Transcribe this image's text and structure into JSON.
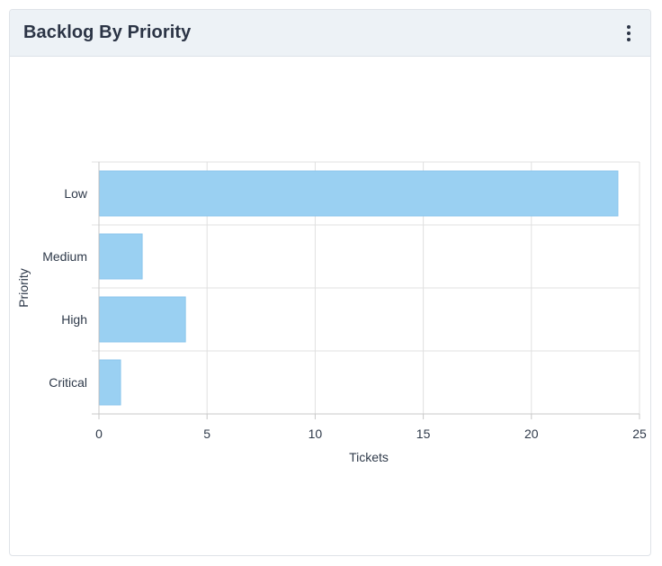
{
  "card": {
    "title": "Backlog By Priority",
    "menu_icon": "kebab-vertical-icon"
  },
  "colors": {
    "bar_fill": "#9ad0f2",
    "bar_stroke": "#8cc6ec",
    "grid": "#e0e0e0",
    "axis": "#c8c8c8",
    "header_bg": "#edf2f6"
  },
  "chart_data": {
    "type": "bar",
    "orientation": "horizontal",
    "title": "",
    "categories": [
      "Low",
      "Medium",
      "High",
      "Critical"
    ],
    "values": [
      24,
      2,
      4,
      1
    ],
    "xlabel": "Tickets",
    "ylabel": "Priority",
    "xlim": [
      0,
      25
    ],
    "xticks": [
      0,
      5,
      10,
      15,
      20,
      25
    ],
    "grid": true,
    "legend": "none"
  }
}
